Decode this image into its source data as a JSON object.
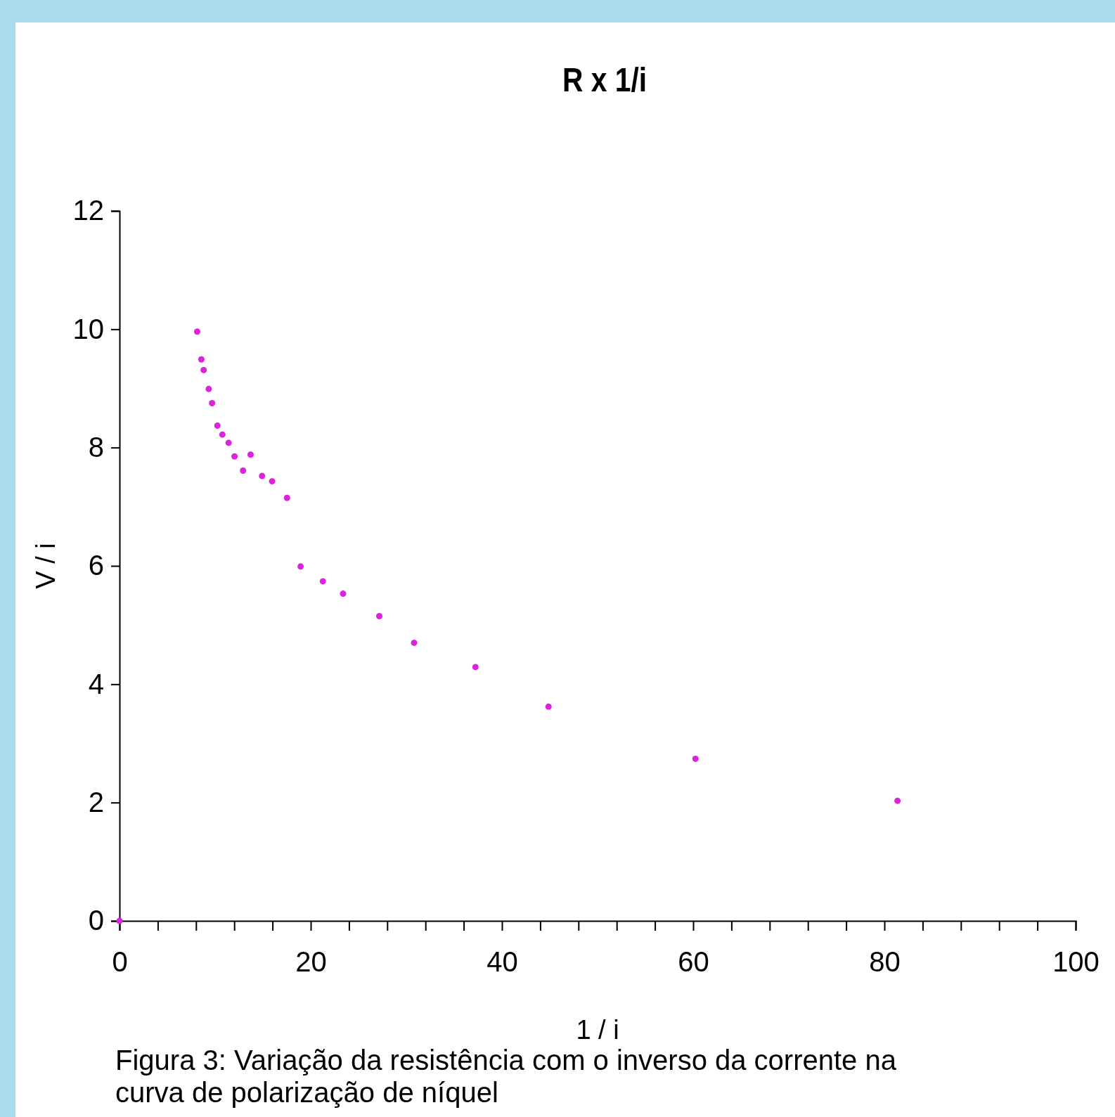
{
  "chart_data": {
    "type": "scatter",
    "title": "R x 1/i",
    "xlabel": "1 / i",
    "ylabel": "V / i",
    "x": [
      0,
      8.12,
      8.56,
      8.8,
      9.33,
      9.68,
      10.24,
      10.76,
      11.41,
      12.03,
      12.92,
      13.71,
      14.91,
      15.96,
      17.52,
      18.94,
      21.27,
      23.38,
      27.17,
      30.81,
      37.23,
      44.87,
      60.24,
      81.37
    ],
    "series": [
      {
        "color": "#dd22dd",
        "values": [
          0,
          9.96,
          9.49,
          9.31,
          8.99,
          8.75,
          8.37,
          8.22,
          8.08,
          7.85,
          7.61,
          7.88,
          7.52,
          7.43,
          7.15,
          5.99,
          5.74,
          5.53,
          5.15,
          4.7,
          4.29,
          3.62,
          2.74,
          2.03
        ]
      }
    ],
    "xlim": [
      0,
      100
    ],
    "ylim": [
      0,
      12
    ],
    "xticks": [
      0,
      {
        "value": 4,
        "label": null
      },
      {
        "value": 8,
        "label": null
      },
      {
        "value": 12,
        "label": null
      },
      {
        "value": 16,
        "label": null
      },
      20,
      {
        "value": 24,
        "label": null
      },
      {
        "value": 28,
        "label": null
      },
      {
        "value": 32,
        "label": null
      },
      {
        "value": 36,
        "label": null
      },
      40,
      {
        "value": 44,
        "label": null
      },
      {
        "value": 48,
        "label": null
      },
      {
        "value": 52,
        "label": null
      },
      {
        "value": 56,
        "label": null
      },
      60,
      {
        "value": 64,
        "label": null
      },
      {
        "value": 68,
        "label": null
      },
      {
        "value": 72,
        "label": null
      },
      {
        "value": 76,
        "label": null
      },
      80,
      {
        "value": 84,
        "label": null
      },
      {
        "value": 88,
        "label": null
      },
      {
        "value": 92,
        "label": null
      },
      {
        "value": 96,
        "label": null
      },
      100
    ],
    "yticks": [
      0,
      2,
      4,
      6,
      8,
      10,
      12
    ],
    "marker": "circle",
    "grid": false,
    "annotations": [
      "Figura 3: Variação da resistência com o inverso da corrente na curva de polarização de níquel"
    ]
  }
}
